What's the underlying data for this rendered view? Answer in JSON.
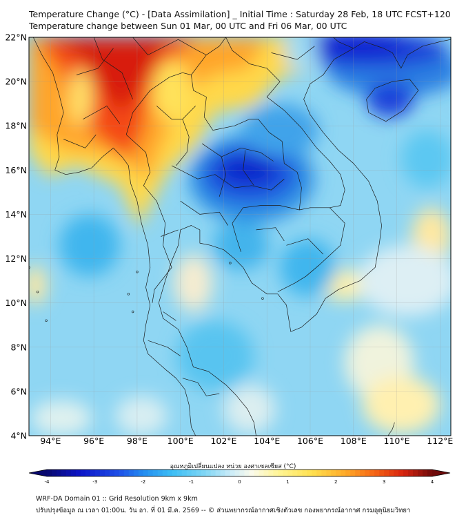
{
  "header": {
    "title_line1": "Temperature Change (°C) - [Data Assimilation] _ Initial Time : Saturday 28 Feb, 18 UTC FCST+120",
    "title_line2": "Temperature change between Sun 01 Mar, 00 UTC and Fri 06 Mar, 00 UTC"
  },
  "map": {
    "lon_range": [
      93,
      112.5
    ],
    "lat_range": [
      4,
      22
    ],
    "lon_ticks": [
      "94°E",
      "96°E",
      "98°E",
      "100°E",
      "102°E",
      "104°E",
      "106°E",
      "108°E",
      "110°E",
      "112°E"
    ],
    "lat_ticks": [
      "22°N",
      "20°N",
      "18°N",
      "16°N",
      "14°N",
      "12°N",
      "10°N",
      "8°N",
      "6°N",
      "4°N"
    ],
    "gridlines": true
  },
  "colorbar": {
    "label": "อุณหภูมิเปลี่ยนแปลง หน่วย องศาเซลเซียส (°C)",
    "ticks": [
      "-4",
      "-3",
      "-2",
      "-1",
      "0",
      "1",
      "2",
      "3",
      "4"
    ],
    "min": -4,
    "max": 4,
    "extend": "both"
  },
  "footer": {
    "line1": "WRF-DA Domain 01 :: Grid Resolution 9km x 9km",
    "line2": "ปรับปรุงข้อมูล ณ เวลา 01:00น. วัน อา. ที่ 01 มี.ค. 2569 -- © ส่วนพยากรณ์อากาศเชิงตัวเลข กองพยากรณ์อากาศ กรมอุตุนิยมวิทยา"
  }
}
